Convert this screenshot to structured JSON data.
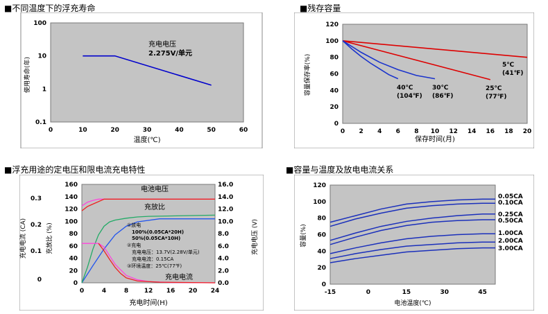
{
  "chart_data": [
    {
      "type": "line",
      "title": "■不同温度下的浮充寿命",
      "xlabel": "温度(℃)",
      "ylabel": "使用寿命(年)",
      "xlim": [
        0,
        60
      ],
      "ylim": [
        0.1,
        100
      ],
      "yscale": "log",
      "xticks": [
        "0",
        "10",
        "20",
        "30",
        "40",
        "50",
        "60"
      ],
      "yticks": [
        "100",
        "10",
        "1",
        "0.1"
      ],
      "grid": false,
      "series": [
        {
          "color": "#0000cc",
          "x": [
            10,
            20,
            50
          ],
          "y": [
            10,
            10,
            1.3
          ]
        }
      ],
      "annotations": [
        "充电电压",
        "2.275V/单元"
      ]
    },
    {
      "type": "line",
      "title": "■残存容量",
      "xlabel": "保存时间(月)",
      "ylabel": "容量保存率(%)",
      "xlim": [
        0,
        20
      ],
      "ylim": [
        0,
        120
      ],
      "xticks": [
        "0",
        "2",
        "4",
        "6",
        "8",
        "10",
        "12",
        "14",
        "16",
        "18",
        "20"
      ],
      "yticks": [
        "0",
        "20",
        "40",
        "60",
        "80",
        "100",
        "120"
      ],
      "grid": false,
      "series": [
        {
          "name": "5℃ (41℉)",
          "color": "#dd0000",
          "x": [
            0,
            20
          ],
          "y": [
            100,
            80
          ]
        },
        {
          "name": "25℃ (77℉)",
          "color": "#dd0000",
          "x": [
            0,
            16
          ],
          "y": [
            100,
            53
          ]
        },
        {
          "name": "30℃ (86℉)",
          "color": "#1a33cc",
          "x": [
            0,
            2,
            4,
            6,
            8,
            10
          ],
          "y": [
            100,
            86,
            74,
            65,
            58,
            54
          ]
        },
        {
          "name": "40℃ (104℉)",
          "color": "#1a33cc",
          "x": [
            0,
            1,
            2,
            3,
            4,
            5,
            6
          ],
          "y": [
            100,
            90,
            81,
            73,
            66,
            59,
            54
          ]
        }
      ],
      "labels": [
        {
          "lines": [
            "5℃",
            "(41℉)"
          ]
        },
        {
          "lines": [
            "25℃",
            "(77℉)"
          ]
        },
        {
          "lines": [
            "30℃",
            "(86℉)"
          ]
        },
        {
          "lines": [
            "40℃",
            "(104℉)"
          ]
        }
      ]
    },
    {
      "type": "line",
      "title": "■浮充用途的定电压和限电流充电特性",
      "xlabel": "充电时间(H)",
      "ylabel_left_outer": "充电电流 (CA)",
      "ylabel_left_inner": "充放比 (%)",
      "ylabel_right": "充电电压 (V)",
      "xlim": [
        0,
        24
      ],
      "ylim_left": [
        0,
        160
      ],
      "ylim_right": [
        0,
        16
      ],
      "xticks": [
        "0",
        "4",
        "8",
        "12",
        "16",
        "20",
        "24"
      ],
      "yticks_left": [
        "0",
        "20",
        "40",
        "60",
        "80",
        "100",
        "120",
        "140",
        "160"
      ],
      "yticks_right": [
        "0.0",
        "2.0",
        "4.0",
        "6.0",
        "8.0",
        "10.0",
        "12.0",
        "14.0",
        "16.0"
      ],
      "yticks_current": [
        "0",
        "0.1",
        "0.2",
        "0.3"
      ],
      "grid": false,
      "series": [
        {
          "name": "电池电压",
          "color": "#ff44dd",
          "x": [
            0,
            1,
            2,
            3,
            4,
            5,
            6,
            24
          ],
          "y": [
            125,
            131,
            134,
            136,
            136,
            136,
            136,
            136
          ]
        },
        {
          "name": "充放比 100%",
          "color": "#2255ee",
          "x": [
            0,
            2,
            4,
            6,
            8,
            10,
            14,
            24
          ],
          "y": [
            0,
            28,
            55,
            78,
            92,
            99,
            104,
            104
          ]
        },
        {
          "name": "充放比 50%",
          "color": "#22aa66",
          "x": [
            0,
            1,
            2,
            3,
            4,
            5,
            6,
            8,
            10,
            12,
            24
          ],
          "y": [
            0,
            25,
            55,
            78,
            92,
            99,
            102,
            105,
            107,
            108,
            110
          ]
        },
        {
          "name": "充电电流",
          "color": "#ee2222",
          "x": [
            0,
            1,
            2,
            3,
            4,
            5,
            6,
            7,
            8,
            10,
            12,
            16,
            24
          ],
          "y": [
            117,
            124,
            128,
            132,
            136,
            136,
            136,
            136,
            136,
            136,
            136,
            136,
            136
          ]
        },
        {
          "name": "充电电流(CA)",
          "color": "#ff44dd",
          "x": [
            0,
            3,
            4,
            5,
            6,
            8,
            10,
            12,
            16,
            24
          ],
          "y": [
            64,
            64,
            58,
            44,
            30,
            12,
            5,
            2,
            0.5,
            0
          ]
        },
        {
          "name": "充电电流 红",
          "color": "#ee2222",
          "x": [
            3,
            4,
            5,
            6,
            7,
            8,
            10,
            14,
            24
          ],
          "y": [
            64,
            52,
            38,
            25,
            15,
            8,
            3,
            1,
            0
          ]
        }
      ],
      "annotations": [
        "电池电压",
        "充放比",
        "充电电流",
        "①放电",
        "100%(0.05CA*20H)",
        "50%(0.05CA*10H)",
        "②充电",
        "充电电压：13.7V(2.28V/单元)",
        "充电电流：0.15CA",
        "③环境温度：25℃(77℉)"
      ]
    },
    {
      "type": "line",
      "title": "■容量与温度及放电电流关系",
      "xlabel": "电池温度(℃)",
      "ylabel": "容量(%)",
      "xlim": [
        -15,
        50
      ],
      "ylim": [
        0,
        120
      ],
      "xticks": [
        "-15",
        "0",
        "15",
        "30",
        "45"
      ],
      "yticks": [
        "0",
        "20",
        "40",
        "60",
        "80",
        "100",
        "120"
      ],
      "grid": false,
      "series": [
        {
          "name": "0.05CA",
          "color": "#1a2fbb",
          "x": [
            -15,
            -5,
            5,
            15,
            25,
            35,
            45,
            50
          ],
          "y": [
            75,
            83,
            91,
            97,
            100,
            102,
            103,
            103
          ]
        },
        {
          "name": "0.10CA",
          "color": "#1a2fbb",
          "x": [
            -15,
            -5,
            5,
            15,
            25,
            35,
            45,
            50
          ],
          "y": [
            70,
            79,
            86,
            92,
            95,
            97,
            98,
            98
          ]
        },
        {
          "name": "0.25CA",
          "color": "#1a2fbb",
          "x": [
            -15,
            -5,
            5,
            15,
            25,
            35,
            45,
            50
          ],
          "y": [
            53,
            62,
            70,
            76,
            80,
            83,
            85,
            85
          ]
        },
        {
          "name": "0.50CA",
          "color": "#1a2fbb",
          "x": [
            -15,
            -5,
            5,
            15,
            25,
            35,
            45,
            50
          ],
          "y": [
            48,
            57,
            65,
            71,
            75,
            77,
            78,
            78
          ]
        },
        {
          "name": "1.00CA",
          "color": "#1a2fbb",
          "x": [
            -15,
            -5,
            5,
            15,
            25,
            35,
            45,
            50
          ],
          "y": [
            37,
            44,
            50,
            55,
            58,
            60,
            61,
            61
          ]
        },
        {
          "name": "2.00CA",
          "color": "#1a2fbb",
          "x": [
            -15,
            -5,
            5,
            15,
            25,
            35,
            45,
            50
          ],
          "y": [
            31,
            37,
            42,
            46,
            48,
            50,
            51,
            51
          ]
        },
        {
          "name": "3.00CA",
          "color": "#1a2fbb",
          "x": [
            -15,
            -5,
            5,
            15,
            25,
            35,
            45,
            50
          ],
          "y": [
            26,
            31,
            35,
            39,
            41,
            43,
            44,
            44
          ]
        }
      ],
      "legend_position": "right"
    }
  ]
}
